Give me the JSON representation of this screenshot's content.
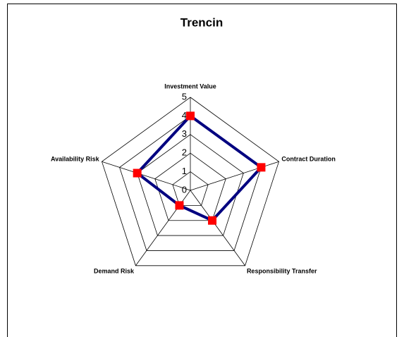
{
  "chart_data": {
    "type": "radar",
    "title": "Trencin",
    "categories": [
      "Investment Value",
      "Contract Duration",
      "Responsibility Transfer",
      "Demand Risk",
      "Availability Risk"
    ],
    "series": [
      {
        "color": "#000080",
        "marker_color": "#ff0000",
        "values": [
          4,
          4,
          2,
          1,
          3
        ]
      }
    ],
    "rlim": [
      0,
      5
    ],
    "rticks": [
      0,
      1,
      2,
      3,
      4,
      5
    ],
    "grid": true
  }
}
